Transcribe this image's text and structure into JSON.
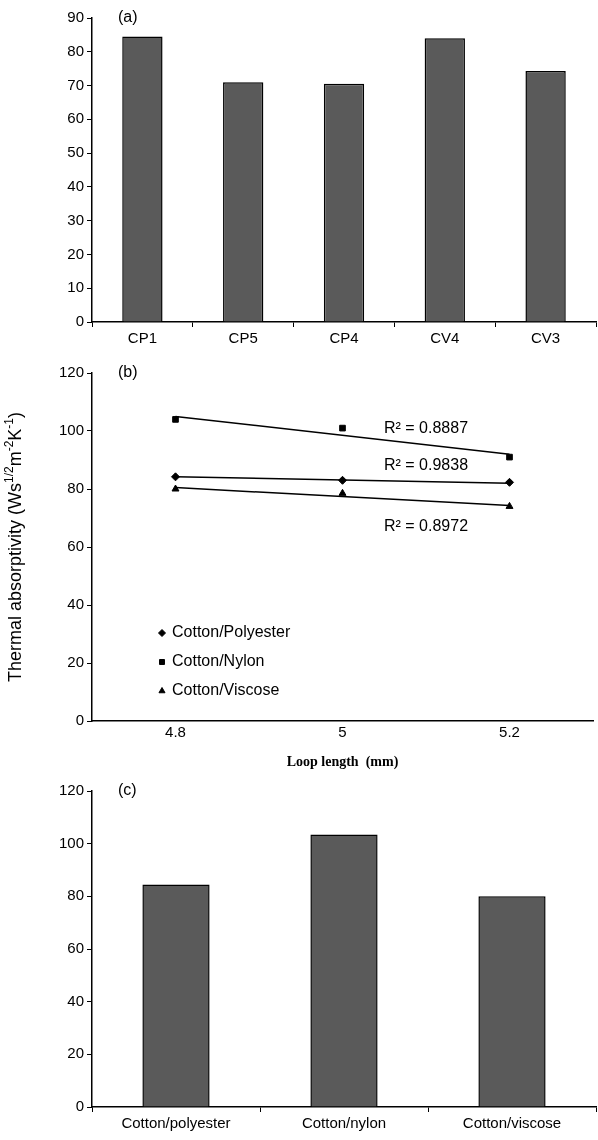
{
  "chart_data": [
    {
      "type": "bar",
      "title": "(a)",
      "categories": [
        "CP1",
        "CP5",
        "CP4",
        "CV4",
        "CV3"
      ],
      "values": [
        84.5,
        71,
        70.5,
        84,
        74.3
      ],
      "color": "#5a5a5a",
      "ylim": [
        0,
        90
      ],
      "yticks": [
        0,
        10,
        20,
        30,
        40,
        50,
        60,
        70,
        80,
        90
      ],
      "grid": false,
      "legend": false
    },
    {
      "type": "scatter",
      "title": "(b)",
      "xlabel": "Loop length  (mm)",
      "ylabel": "Thermal absorptivity (Ws$^{1/2}$m$^{-2}$K$^{-1}$)",
      "xlim": [
        4.7,
        5.3
      ],
      "xticks": [
        4.8,
        5,
        5.2
      ],
      "ylim": [
        0,
        120
      ],
      "yticks": [
        0,
        20,
        40,
        60,
        80,
        100,
        120
      ],
      "grid": false,
      "legend": "bottom left",
      "series": [
        {
          "name": "Cotton/Polyester",
          "color": "#000000",
          "marker": "diamond",
          "x": [
            4.8,
            5,
            5.2
          ],
          "values": [
            84.2,
            83,
            82.3
          ]
        },
        {
          "name": "Cotton/Nylon",
          "color": "#000000",
          "marker": "square",
          "x": [
            4.8,
            5,
            5.2
          ],
          "values": [
            104,
            101,
            91
          ]
        },
        {
          "name": "Cotton/Viscose",
          "color": "#000000",
          "marker": "triangle",
          "x": [
            4.8,
            5,
            5.2
          ],
          "values": [
            80,
            78.5,
            74
          ]
        },
        {
          "type": "line",
          "color": "#000000",
          "marker": "none",
          "x": [
            4.8,
            5.2
          ],
          "values": [
            105,
            92
          ]
        },
        {
          "type": "line",
          "color": "#000000",
          "marker": "none",
          "x": [
            4.8,
            5.2
          ],
          "values": [
            84.2,
            82
          ]
        },
        {
          "type": "line",
          "color": "#000000",
          "marker": "none",
          "x": [
            4.8,
            5.2
          ],
          "values": [
            80.5,
            74.3
          ]
        }
      ],
      "annotations": [
        "R² = 0.8887",
        "R² = 0.9838",
        "R² = 0.8972"
      ]
    },
    {
      "type": "bar",
      "title": "(c)",
      "categories": [
        "Cotton/polyester",
        "Cotton/nylon",
        "Cotton/viscose"
      ],
      "values": [
        84.5,
        103.5,
        80
      ],
      "color": "#5a5a5a",
      "ylim": [
        0,
        120
      ],
      "yticks": [
        0,
        20,
        40,
        60,
        80,
        100,
        120
      ],
      "grid": false,
      "legend": false
    }
  ]
}
